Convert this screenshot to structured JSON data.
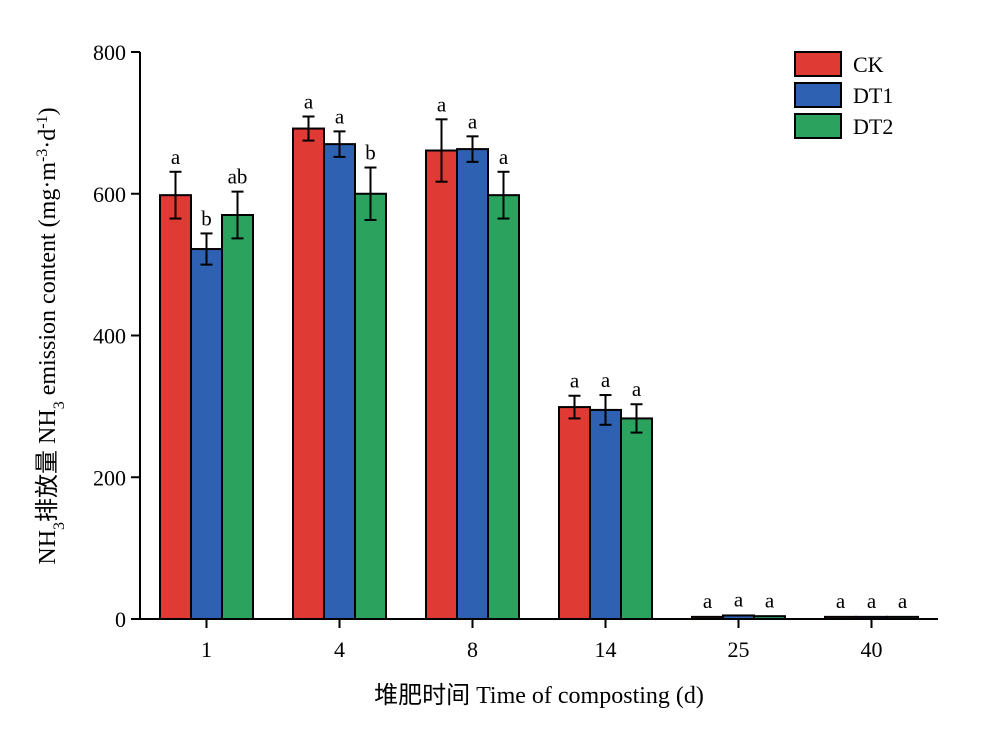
{
  "chart_data": {
    "type": "bar",
    "categories": [
      "1",
      "4",
      "8",
      "14",
      "25",
      "40"
    ],
    "series": [
      {
        "name": "CK",
        "color": "#e03a35",
        "values": [
          598,
          692,
          661,
          299,
          3,
          3
        ],
        "errors": [
          33,
          17,
          44,
          16,
          1,
          1
        ],
        "letters": [
          "a",
          "a",
          "a",
          "a",
          "a",
          "a"
        ]
      },
      {
        "name": "DT1",
        "color": "#2e61b2",
        "values": [
          522,
          670,
          663,
          295,
          5,
          3
        ],
        "errors": [
          22,
          18,
          18,
          21,
          1,
          1
        ],
        "letters": [
          "b",
          "a",
          "a",
          "a",
          "a",
          "a"
        ]
      },
      {
        "name": "DT2",
        "color": "#2ba35e",
        "values": [
          570,
          600,
          598,
          283,
          4,
          3
        ],
        "errors": [
          33,
          37,
          33,
          20,
          1,
          1
        ],
        "letters": [
          "ab",
          "b",
          "a",
          "a",
          "a",
          "a"
        ]
      }
    ],
    "xlabel": "堆肥时间 Time of composting (d)",
    "ylabel": {
      "part1": "NH",
      "sub1": "3",
      "part2": "排放量 NH",
      "sub2": "3",
      "part3": " emission content (mg·m",
      "sup1": "-3",
      "part4": "·d",
      "sup2": "-1",
      "part5": ")"
    },
    "ylim": [
      0,
      800
    ],
    "yticks": [
      0,
      200,
      400,
      600,
      800
    ],
    "grid": false,
    "legend_position": "top-right"
  }
}
